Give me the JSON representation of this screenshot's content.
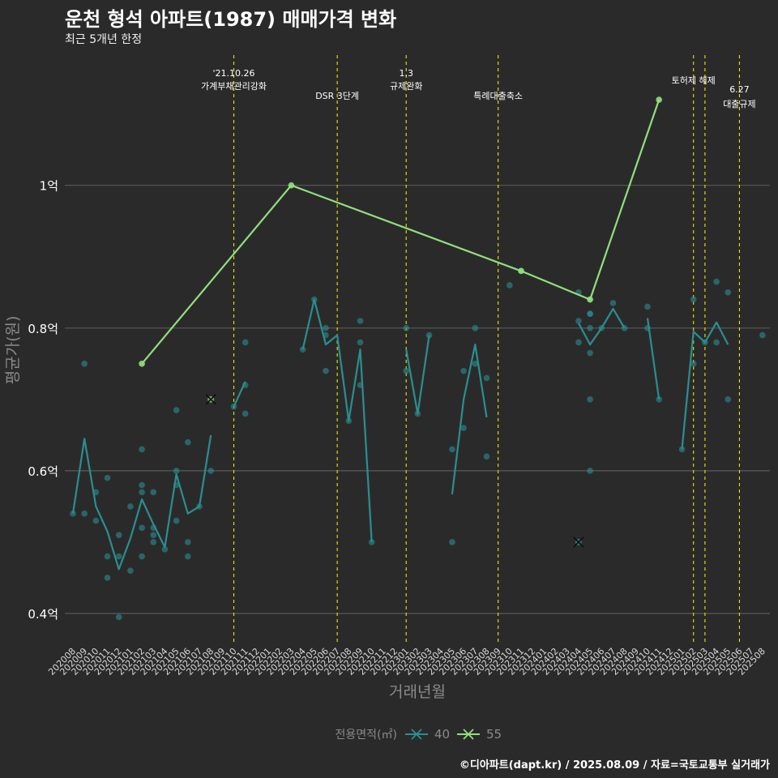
{
  "title": "운천 형석 아파트(1987) 매매가격 변화",
  "subtitle": "최근 5개년 한정",
  "caption": "©디아파트(dapt.kr) / 2025.08.09 / 자료=국토교통부 실거래가",
  "chart_data": {
    "type": "line",
    "xlabel": "거래년월",
    "ylabel": "평균가(원)",
    "ylim": [
      0.36,
      1.18
    ],
    "y_ticks": [
      {
        "value": 0.4,
        "label": "0.4억"
      },
      {
        "value": 0.6,
        "label": "0.6억"
      },
      {
        "value": 0.8,
        "label": "0.8억"
      },
      {
        "value": 1.0,
        "label": "1억"
      }
    ],
    "categories": [
      "202008",
      "202009",
      "202010",
      "202011",
      "202012",
      "202101",
      "202102",
      "202103",
      "202104",
      "202105",
      "202106",
      "202107",
      "202108",
      "202109",
      "202110",
      "202111",
      "202112",
      "202201",
      "202202",
      "202203",
      "202204",
      "202205",
      "202206",
      "202207",
      "202208",
      "202209",
      "202210",
      "202211",
      "202212",
      "202301",
      "202302",
      "202303",
      "202304",
      "202305",
      "202306",
      "202307",
      "202308",
      "202309",
      "202310",
      "202311",
      "202312",
      "202401",
      "202402",
      "202403",
      "202404",
      "202405",
      "202406",
      "202407",
      "202408",
      "202409",
      "202410",
      "202411",
      "202412",
      "202501",
      "202502",
      "202503",
      "202504",
      "202505",
      "202506",
      "202507",
      "202508"
    ],
    "legend": {
      "title": "전용면적(㎡)",
      "position": "bottom"
    },
    "grid": true,
    "series": [
      {
        "name": "40",
        "color": "#2a8f8f",
        "lines": [
          [
            [
              "202008",
              0.54
            ],
            [
              "202009",
              0.645
            ],
            [
              "202010",
              0.55
            ],
            [
              "202011",
              0.515
            ],
            [
              "202012",
              0.462
            ],
            [
              "202101",
              0.505
            ],
            [
              "202102",
              0.56
            ],
            [
              "202103",
              0.525
            ],
            [
              "202104",
              0.493
            ],
            [
              "202105",
              0.595
            ],
            [
              "202106",
              0.54
            ],
            [
              "202107",
              0.55
            ],
            [
              "202108",
              0.65
            ]
          ],
          [
            [
              "202110",
              0.69
            ],
            [
              "202111",
              0.725
            ]
          ],
          [
            [
              "202204",
              0.77
            ],
            [
              "202205",
              0.84
            ],
            [
              "202206",
              0.777
            ],
            [
              "202207",
              0.79
            ],
            [
              "202208",
              0.67
            ],
            [
              "202209",
              0.77
            ],
            [
              "202210",
              0.5
            ]
          ],
          [
            [
              "202301",
              0.77
            ],
            [
              "202302",
              0.68
            ],
            [
              "202303",
              0.79
            ]
          ],
          [
            [
              "202305",
              0.567
            ],
            [
              "202306",
              0.7
            ],
            [
              "202307",
              0.777
            ],
            [
              "202308",
              0.675
            ]
          ],
          [
            [
              "202404",
              0.807
            ],
            [
              "202405",
              0.777
            ],
            [
              "202406",
              0.8
            ],
            [
              "202407",
              0.827
            ],
            [
              "202408",
              0.8
            ]
          ],
          [
            [
              "202410",
              0.814
            ],
            [
              "202411",
              0.7
            ]
          ],
          [
            [
              "202501",
              0.63
            ],
            [
              "202502",
              0.795
            ],
            [
              "202503",
              0.78
            ],
            [
              "202504",
              0.808
            ],
            [
              "202505",
              0.777
            ]
          ]
        ],
        "points": [
          [
            "202008",
            0.54
          ],
          [
            "202009",
            0.75
          ],
          [
            "202009",
            0.54
          ],
          [
            "202010",
            0.57
          ],
          [
            "202010",
            0.53
          ],
          [
            "202011",
            0.59
          ],
          [
            "202011",
            0.48
          ],
          [
            "202011",
            0.45
          ],
          [
            "202012",
            0.51
          ],
          [
            "202012",
            0.48
          ],
          [
            "202012",
            0.395
          ],
          [
            "202101",
            0.55
          ],
          [
            "202101",
            0.46
          ],
          [
            "202102",
            0.63
          ],
          [
            "202102",
            0.58
          ],
          [
            "202102",
            0.57
          ],
          [
            "202102",
            0.52
          ],
          [
            "202102",
            0.48
          ],
          [
            "202103",
            0.57
          ],
          [
            "202103",
            0.52
          ],
          [
            "202103",
            0.51
          ],
          [
            "202103",
            0.5
          ],
          [
            "202104",
            0.49
          ],
          [
            "202105",
            0.685
          ],
          [
            "202105",
            0.6
          ],
          [
            "202105",
            0.58
          ],
          [
            "202105",
            0.53
          ],
          [
            "202106",
            0.64
          ],
          [
            "202106",
            0.5
          ],
          [
            "202106",
            0.48
          ],
          [
            "202107",
            0.55
          ],
          [
            "202108",
            0.6
          ],
          [
            "202110",
            0.69
          ],
          [
            "202111",
            0.78
          ],
          [
            "202111",
            0.72
          ],
          [
            "202111",
            0.68
          ],
          [
            "202204",
            0.77
          ],
          [
            "202205",
            0.84
          ],
          [
            "202206",
            0.8
          ],
          [
            "202206",
            0.79
          ],
          [
            "202206",
            0.74
          ],
          [
            "202208",
            0.67
          ],
          [
            "202209",
            0.81
          ],
          [
            "202209",
            0.78
          ],
          [
            "202209",
            0.72
          ],
          [
            "202210",
            0.5
          ],
          [
            "202301",
            0.8
          ],
          [
            "202301",
            0.74
          ],
          [
            "202302",
            0.68
          ],
          [
            "202303",
            0.79
          ],
          [
            "202305",
            0.63
          ],
          [
            "202305",
            0.5
          ],
          [
            "202306",
            0.74
          ],
          [
            "202306",
            0.66
          ],
          [
            "202307",
            0.8
          ],
          [
            "202307",
            0.75
          ],
          [
            "202308",
            0.73
          ],
          [
            "202308",
            0.62
          ],
          [
            "202310",
            0.86
          ],
          [
            "202311",
            0.88
          ],
          [
            "202404",
            0.85
          ],
          [
            "202404",
            0.81
          ],
          [
            "202404",
            0.78
          ],
          [
            "202405",
            0.84
          ],
          [
            "202405",
            0.82
          ],
          [
            "202405",
            0.82
          ],
          [
            "202405",
            0.8
          ],
          [
            "202405",
            0.765
          ],
          [
            "202405",
            0.7
          ],
          [
            "202405",
            0.6
          ],
          [
            "202406",
            0.8
          ],
          [
            "202407",
            0.835
          ],
          [
            "202408",
            0.8
          ],
          [
            "202410",
            0.83
          ],
          [
            "202410",
            0.8
          ],
          [
            "202411",
            0.7
          ],
          [
            "202501",
            0.63
          ],
          [
            "202502",
            0.84
          ],
          [
            "202502",
            0.75
          ],
          [
            "202503",
            0.78
          ],
          [
            "202504",
            0.865
          ],
          [
            "202504",
            0.78
          ],
          [
            "202505",
            0.85
          ],
          [
            "202505",
            0.7
          ],
          [
            "202508",
            0.79
          ]
        ],
        "cancelled": [
          [
            "202404",
            0.5
          ]
        ]
      },
      {
        "name": "55",
        "color": "#90e07c",
        "lines": [
          [
            [
              "202102",
              0.75
            ],
            [
              "202203",
              1.0
            ],
            [
              "202311",
              0.88
            ],
            [
              "202405",
              0.84
            ],
            [
              "202411",
              1.12
            ]
          ]
        ],
        "points": [
          [
            "202102",
            0.75
          ],
          [
            "202203",
            1.0
          ],
          [
            "202311",
            0.88
          ],
          [
            "202405",
            0.84
          ],
          [
            "202411",
            1.12
          ]
        ],
        "cancelled": [
          [
            "202108",
            0.7
          ]
        ]
      }
    ],
    "annotations": [
      {
        "x": "202110",
        "lines": [
          "'21.10.26",
          "가계부채관리강화"
        ]
      },
      {
        "x": "202207",
        "lines": [
          "DSR 3단계"
        ]
      },
      {
        "x": "202301",
        "lines": [
          "1.3",
          "규제완화"
        ]
      },
      {
        "x": "202309",
        "lines": [
          "특례대출축소"
        ]
      },
      {
        "x": "202502",
        "lines": [
          "토허제 해제"
        ]
      },
      {
        "x": "202503",
        "lines": []
      },
      {
        "x": "202506",
        "lines": [
          "6.27",
          "대출규제"
        ]
      }
    ]
  }
}
